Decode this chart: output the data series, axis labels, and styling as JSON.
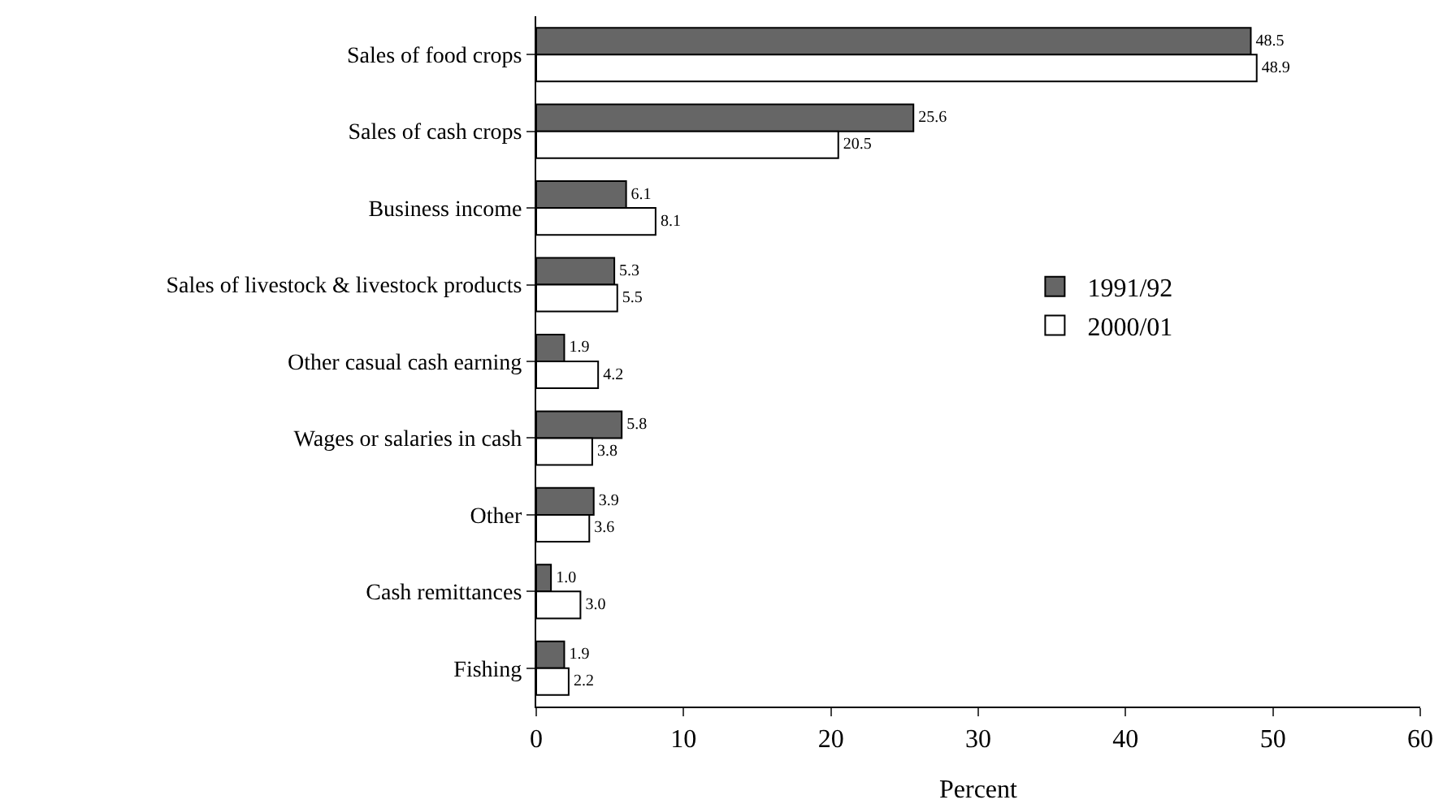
{
  "chart_data": {
    "type": "bar",
    "orientation": "horizontal",
    "xlabel": "Percent",
    "categories": [
      "Sales of food crops",
      "Sales of cash crops",
      "Business income",
      "Sales of livestock & livestock products",
      "Other casual cash earning",
      "Wages or salaries in cash",
      "Other",
      "Cash remittances",
      "Fishing"
    ],
    "series": [
      {
        "name": "1991/92",
        "color": "#666666",
        "values": [
          48.5,
          25.6,
          6.1,
          5.3,
          1.9,
          5.8,
          3.9,
          1.0,
          1.9
        ],
        "value_labels": [
          "48.5",
          "25.6",
          "6.1",
          "5.3",
          "1.9",
          "5.8",
          "3.9",
          "1.0",
          "1.9"
        ]
      },
      {
        "name": "2000/01",
        "color": "#ffffff",
        "values": [
          48.9,
          20.5,
          8.1,
          5.5,
          4.2,
          3.8,
          3.6,
          3.0,
          2.2
        ],
        "value_labels": [
          "48.9",
          "20.5",
          "8.1",
          "5.5",
          "4.2",
          "3.8",
          "3.6",
          "3.0",
          "2.2"
        ]
      }
    ],
    "xlim": [
      0,
      60
    ],
    "xticks": [
      0,
      10,
      20,
      30,
      40,
      50,
      60
    ],
    "grid": false,
    "legend": "right"
  }
}
